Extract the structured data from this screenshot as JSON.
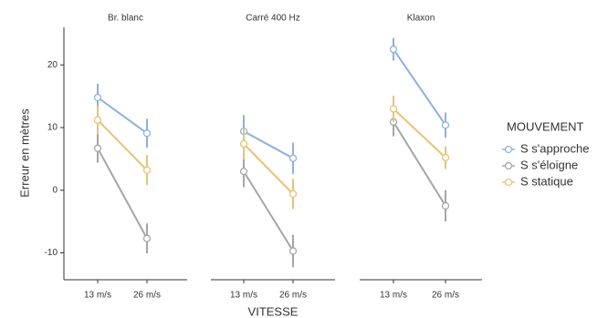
{
  "chart_data": [
    {
      "type": "line",
      "title": "Br. blanc",
      "ylabel": "Erreur en mètres",
      "xlabel": "VITESSE",
      "legend_title": "MOUVEMENT",
      "legend": "right",
      "categories": [
        "13 m/s",
        "26 m/s"
      ],
      "ylim": [
        -14,
        26
      ],
      "yticks": [
        -10,
        0,
        10,
        20
      ],
      "series": [
        {
          "name": "S s'approche",
          "color": "#8fb0de",
          "values": [
            14.8,
            9.1
          ],
          "errors": [
            2.2,
            2.3
          ]
        },
        {
          "name": "S s'éloigne",
          "color": "#a6a6a6",
          "values": [
            6.7,
            -7.7
          ],
          "errors": [
            2.3,
            2.4
          ]
        },
        {
          "name": "S statique",
          "color": "#e8c27a",
          "values": [
            11.2,
            3.2
          ],
          "errors": [
            2.3,
            2.4
          ]
        }
      ]
    },
    {
      "type": "line",
      "title": "Carré 400 Hz",
      "categories": [
        "13 m/s",
        "26 m/s"
      ],
      "ylim": [
        -14,
        26
      ],
      "series": [
        {
          "color": "#8fb0de",
          "values": [
            9.4,
            5.1
          ],
          "errors": [
            2.6,
            2.5
          ]
        },
        {
          "color": "#a6a6a6",
          "values": [
            3.0,
            -9.7
          ],
          "errors": [
            2.5,
            2.6
          ]
        },
        {
          "color": "#e8c27a",
          "values": [
            7.4,
            -0.6
          ],
          "errors": [
            2.5,
            2.4
          ]
        }
      ]
    },
    {
      "type": "line",
      "title": "Klaxon",
      "categories": [
        "13 m/s",
        "26 m/s"
      ],
      "ylim": [
        -14,
        26
      ],
      "series": [
        {
          "color": "#8fb0de",
          "values": [
            22.5,
            10.4
          ],
          "errors": [
            1.8,
            2.0
          ]
        },
        {
          "color": "#a6a6a6",
          "values": [
            10.9,
            -2.5
          ],
          "errors": [
            2.3,
            2.5
          ]
        },
        {
          "color": "#e8c27a",
          "values": [
            13.0,
            5.2
          ],
          "errors": [
            2.1,
            1.8
          ]
        }
      ]
    }
  ]
}
